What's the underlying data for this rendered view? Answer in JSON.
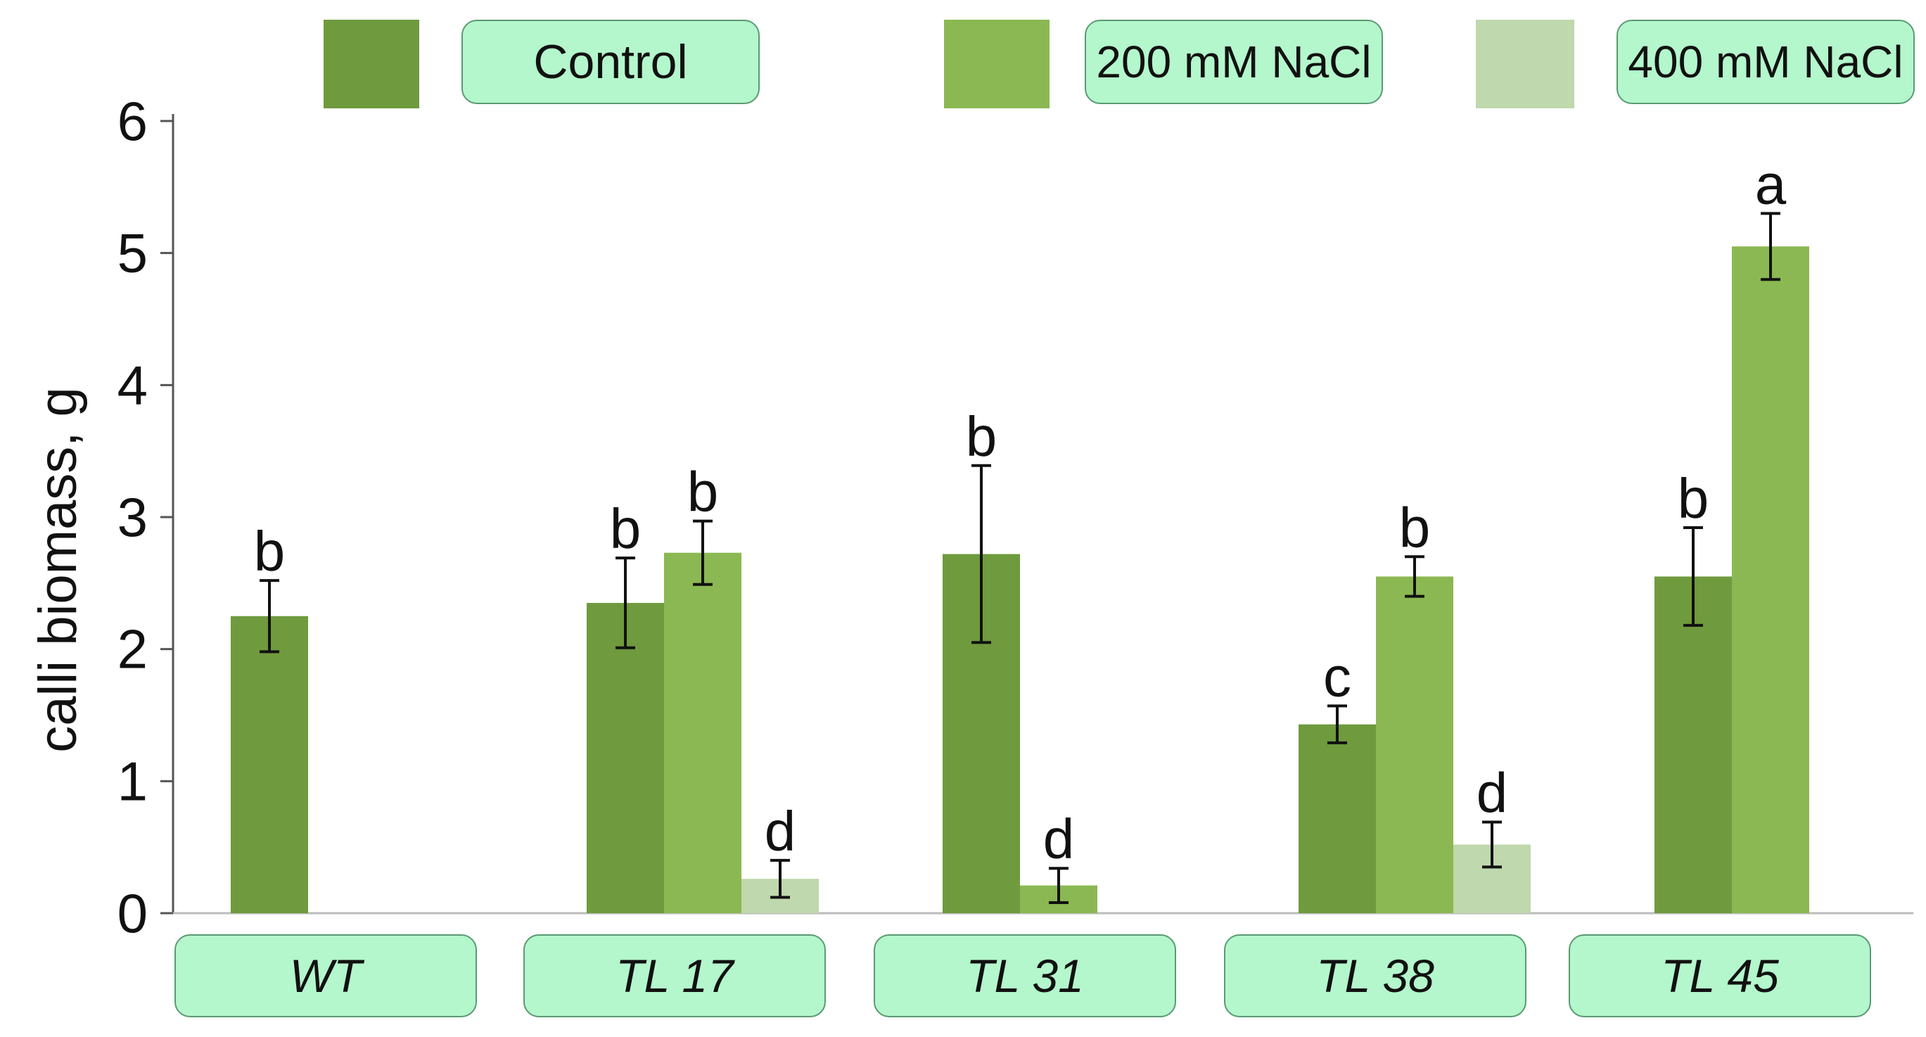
{
  "chart_data": {
    "type": "bar",
    "ylabel": "calli biomass, g",
    "xlabel": "",
    "ylim": [
      0,
      6
    ],
    "yticks": [
      0,
      1,
      2,
      3,
      4,
      5,
      6
    ],
    "categories": [
      "WT",
      "TL 17",
      "TL 31",
      "TL 38",
      "TL 45"
    ],
    "series": [
      {
        "name": "Control",
        "color": "#6f9a3e",
        "values": [
          2.25,
          2.35,
          2.72,
          1.43,
          2.55
        ],
        "errors": [
          0.27,
          0.34,
          0.67,
          0.14,
          0.37
        ],
        "letters": [
          "b",
          "b",
          "b",
          "c",
          "b"
        ]
      },
      {
        "name": "200 mM NaCl",
        "color": "#8bb852",
        "values": [
          null,
          2.73,
          0.21,
          2.55,
          5.05
        ],
        "errors": [
          null,
          0.24,
          0.13,
          0.15,
          0.25
        ],
        "letters": [
          null,
          "b",
          "d",
          "b",
          "a"
        ]
      },
      {
        "name": "400 mM NaCl",
        "color": "#bfd8ad",
        "values": [
          null,
          0.26,
          null,
          0.52,
          null
        ],
        "errors": [
          null,
          0.14,
          null,
          0.17,
          null
        ],
        "letters": [
          null,
          "d",
          null,
          "d",
          null
        ]
      }
    ],
    "legend_position": "top",
    "grid": false
  }
}
